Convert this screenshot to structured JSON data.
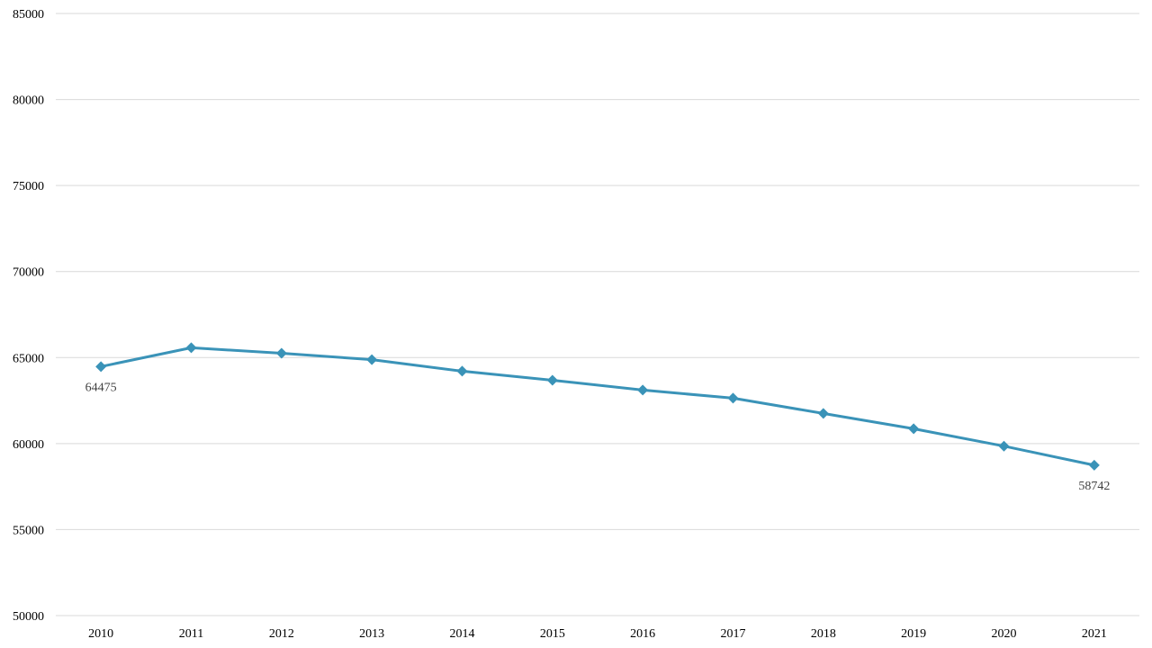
{
  "chart_data": {
    "type": "line",
    "title": "",
    "xlabel": "",
    "ylabel": "",
    "x": [
      "2010",
      "2011",
      "2012",
      "2013",
      "2014",
      "2015",
      "2016",
      "2017",
      "2018",
      "2019",
      "2020",
      "2021"
    ],
    "series": [
      {
        "values": [
          64475,
          65570,
          65250,
          64880,
          64210,
          63680,
          63110,
          62640,
          61750,
          60860,
          59850,
          58742
        ],
        "color": "#3a93b8",
        "marker": "diamond"
      }
    ],
    "data_labels": [
      {
        "index": 0,
        "text": "64475"
      },
      {
        "index": 11,
        "text": "58742"
      }
    ],
    "ylim": [
      50000,
      85000
    ],
    "yticks": [
      "50000",
      "55000",
      "60000",
      "65000",
      "70000",
      "75000",
      "80000",
      "85000"
    ],
    "grid": "horizontal",
    "legend": "none",
    "colors": {
      "grid": "#d9d9d9",
      "line": "#3a93b8",
      "label": "#404040"
    }
  }
}
